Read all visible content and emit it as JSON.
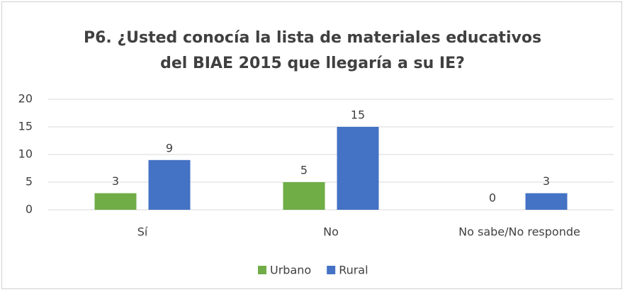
{
  "chart_data": {
    "type": "bar",
    "title": "P6. ¿Usted conocía la lista de materiales educativos del BIAE 2015 que llegaría  a su IE?",
    "categories": [
      "Sí",
      "No",
      "No sabe/No responde"
    ],
    "series": [
      {
        "name": "Urbano",
        "color": "#70ad47",
        "values": [
          3,
          5,
          0
        ]
      },
      {
        "name": "Rural",
        "color": "#4472c4",
        "values": [
          9,
          15,
          3
        ]
      }
    ],
    "ylim": [
      0,
      20
    ],
    "yticks": [
      0,
      5,
      10,
      15,
      20
    ],
    "grid": true,
    "legend": "bottom"
  }
}
